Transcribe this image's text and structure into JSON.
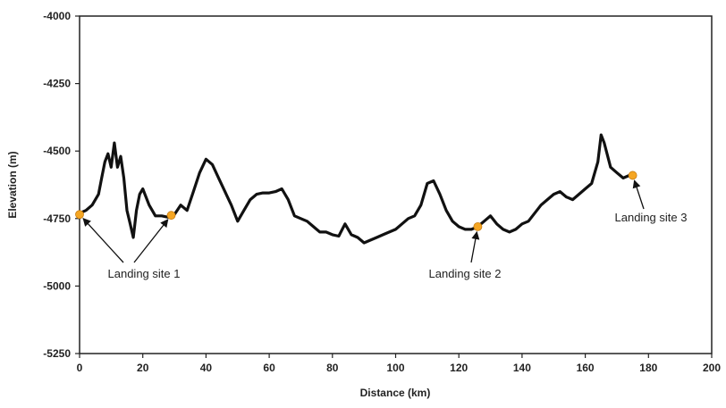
{
  "chart_data": {
    "type": "line",
    "title": "",
    "xlabel": "Distance (km)",
    "ylabel": "Elevation (m)",
    "xlim": [
      0,
      200
    ],
    "ylim": [
      -5250,
      -4000
    ],
    "x_ticks": [
      0,
      20,
      40,
      60,
      80,
      100,
      120,
      140,
      160,
      180,
      200
    ],
    "y_ticks": [
      -4000,
      -4250,
      -4500,
      -4750,
      -5000,
      -5250
    ],
    "grid": false,
    "legend": "none",
    "line_color": "#111111",
    "marker_color": "#f5a623",
    "series": [
      {
        "x": [
          0,
          2,
          4,
          6,
          7,
          8,
          9,
          10,
          11,
          12,
          13,
          14,
          15,
          16,
          17,
          18,
          19,
          20,
          22,
          24,
          26,
          28,
          30,
          32,
          34,
          36,
          38,
          40,
          42,
          44,
          46,
          48,
          50,
          52,
          54,
          56,
          58,
          60,
          62,
          64,
          66,
          68,
          70,
          72,
          74,
          76,
          78,
          80,
          82,
          84,
          86,
          88,
          90,
          92,
          94,
          96,
          98,
          100,
          102,
          104,
          106,
          108,
          110,
          112,
          114,
          116,
          118,
          120,
          122,
          124,
          126,
          128,
          130,
          132,
          134,
          136,
          138,
          140,
          142,
          144,
          146,
          148,
          150,
          152,
          154,
          156,
          158,
          160,
          162,
          164,
          165,
          166,
          168,
          170,
          172,
          174,
          175
        ],
        "y": [
          -4730,
          -4720,
          -4700,
          -4660,
          -4600,
          -4540,
          -4510,
          -4560,
          -4470,
          -4560,
          -4520,
          -4600,
          -4720,
          -4770,
          -4820,
          -4720,
          -4660,
          -4640,
          -4700,
          -4740,
          -4740,
          -4745,
          -4735,
          -4700,
          -4720,
          -4650,
          -4580,
          -4530,
          -4550,
          -4600,
          -4650,
          -4700,
          -4760,
          -4720,
          -4680,
          -4660,
          -4655,
          -4655,
          -4650,
          -4640,
          -4680,
          -4740,
          -4750,
          -4760,
          -4780,
          -4800,
          -4800,
          -4810,
          -4815,
          -4770,
          -4810,
          -4820,
          -4840,
          -4830,
          -4820,
          -4810,
          -4800,
          -4790,
          -4770,
          -4750,
          -4740,
          -4700,
          -4620,
          -4610,
          -4660,
          -4720,
          -4760,
          -4780,
          -4790,
          -4790,
          -4780,
          -4760,
          -4740,
          -4770,
          -4790,
          -4800,
          -4790,
          -4770,
          -4760,
          -4730,
          -4700,
          -4680,
          -4660,
          -4650,
          -4670,
          -4680,
          -4660,
          -4640,
          -4620,
          -4540,
          -4440,
          -4470,
          -4560,
          -4580,
          -4600,
          -4590,
          -4590
        ],
        "markers": [
          {
            "x": 0,
            "y": -4735
          },
          {
            "x": 29,
            "y": -4738
          },
          {
            "x": 126,
            "y": -4780
          },
          {
            "x": 175,
            "y": -4590
          }
        ]
      }
    ],
    "annotations": [
      {
        "text": "Landing site 1",
        "targets": [
          0,
          1
        ]
      },
      {
        "text": "Landing site 2",
        "targets": [
          2
        ]
      },
      {
        "text": "Landing site 3",
        "targets": [
          3
        ]
      }
    ]
  }
}
